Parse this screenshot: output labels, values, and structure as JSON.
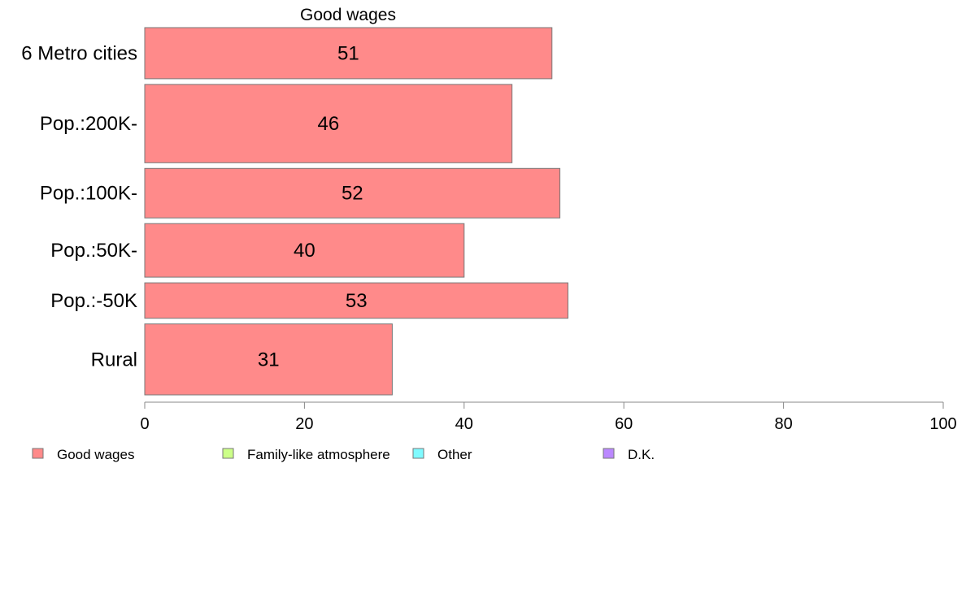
{
  "chart_data": {
    "type": "bar",
    "orientation": "horizontal",
    "title": "Good wages",
    "xlabel": "",
    "ylabel": "",
    "xlim": [
      0,
      100
    ],
    "xticks": [
      0,
      20,
      40,
      60,
      80,
      100
    ],
    "grid": false,
    "categories": [
      "6 Metro cities",
      "Pop.:200K-",
      "Pop.:100K-",
      "Pop.:50K-",
      "Pop.:-50K",
      "Rural"
    ],
    "relative_bar_thickness": [
      0.62,
      0.95,
      0.6,
      0.65,
      0.43,
      0.86
    ],
    "series": [
      {
        "name": "Good wages",
        "values": [
          51,
          46,
          52,
          40,
          53,
          31
        ],
        "color": "#ff8a8a"
      }
    ],
    "legend": {
      "placement": "bottom-left",
      "entries": [
        {
          "label": "Good wages",
          "color": "#ff8a8a"
        },
        {
          "label": "Family-like atmosphere",
          "color": "#ccff88"
        },
        {
          "label": "Other",
          "color": "#7ffaff"
        },
        {
          "label": "D.K.",
          "color": "#bb88ff"
        }
      ]
    }
  }
}
